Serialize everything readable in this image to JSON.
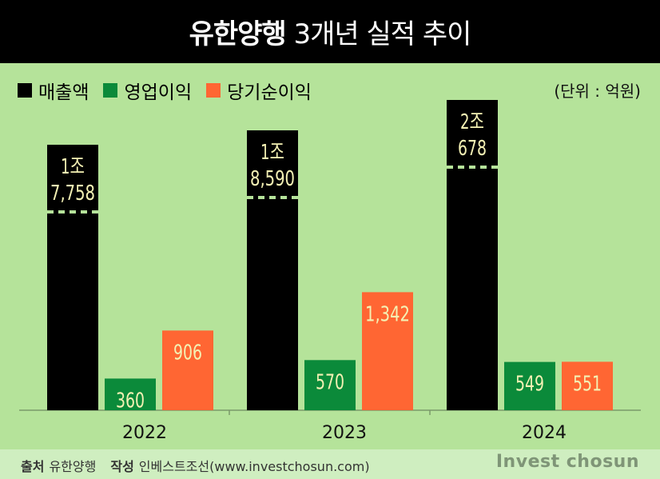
{
  "header": {
    "title_bold": "유한양행",
    "title_rest": " 3개년 실적 추이"
  },
  "legend": [
    {
      "label": "매출액",
      "color": "#000000"
    },
    {
      "label": "영업이익",
      "color": "#0b8a3a"
    },
    {
      "label": "당기순이익",
      "color": "#ff6633"
    }
  ],
  "unit": "(단위 : 억원)",
  "footer": {
    "source_label": "출처",
    "source_value": "유한양행",
    "author_label": "작성",
    "author_value": "인베스트조선(www.investchosun.com)",
    "brand": "Invest chosun"
  },
  "chart_data": {
    "type": "bar",
    "categories": [
      "2022",
      "2023",
      "2024"
    ],
    "series": [
      {
        "name": "매출액",
        "color": "#000000",
        "values": [
          17758,
          18590,
          20678
        ],
        "labels": [
          [
            "1조",
            "7,758"
          ],
          [
            "1조",
            "8,590"
          ],
          [
            "2조",
            "678"
          ]
        ],
        "broken_axis": true
      },
      {
        "name": "영업이익",
        "color": "#0b8a3a",
        "values": [
          360,
          570,
          549
        ],
        "labels": [
          [
            "360"
          ],
          [
            "570"
          ],
          [
            "549"
          ]
        ]
      },
      {
        "name": "당기순이익",
        "color": "#ff6633",
        "values": [
          906,
          1342,
          551
        ],
        "labels": [
          [
            "906"
          ],
          [
            "1,342"
          ],
          [
            "551"
          ]
        ]
      }
    ],
    "ylabel": "",
    "xlabel": "",
    "grid": false,
    "legend_position": "top-left"
  }
}
